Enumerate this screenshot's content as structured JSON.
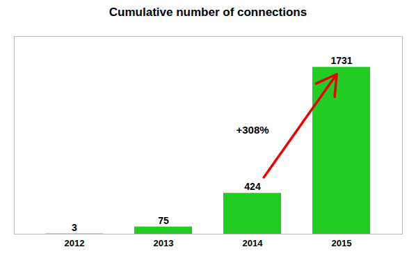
{
  "chart_data": {
    "type": "bar",
    "title": "Cumulative number of connections",
    "categories": [
      "2012",
      "2013",
      "2014",
      "2015"
    ],
    "values": [
      3,
      75,
      424,
      1731
    ],
    "color": "#22CC22",
    "ylim": [
      0,
      2050
    ],
    "yticks": [],
    "grid": false,
    "data_labels": true,
    "tick_labels": "x",
    "annotations": [
      {
        "text": "+308%",
        "color": "#EE0000"
      }
    ]
  }
}
